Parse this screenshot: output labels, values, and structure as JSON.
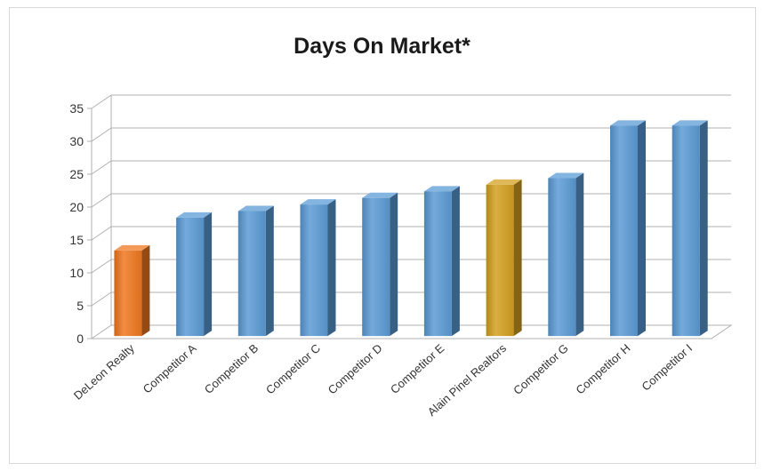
{
  "chart_data": {
    "type": "bar",
    "title": "Days On Market*",
    "categories": [
      "DeLeon Realty",
      "Competitor A",
      "Competitor B",
      "Competitor C",
      "Competitor D",
      "Competitor E",
      "Alain Pinel Realtors",
      "Competitor G",
      "Competitor H",
      "Competitor I"
    ],
    "values": [
      13,
      18,
      19,
      20,
      21,
      22,
      23,
      24,
      32,
      32
    ],
    "ylim": [
      0,
      35
    ],
    "yticks": [
      0,
      5,
      10,
      15,
      20,
      25,
      30,
      35
    ],
    "grid": true,
    "legend": "none",
    "style": "3d-column"
  },
  "colors": {
    "default_bar": "#5b9bd5",
    "highlight_deleon": "#f07820",
    "highlight_alain": "#d4a020",
    "gridline": "#b0b0b0"
  }
}
